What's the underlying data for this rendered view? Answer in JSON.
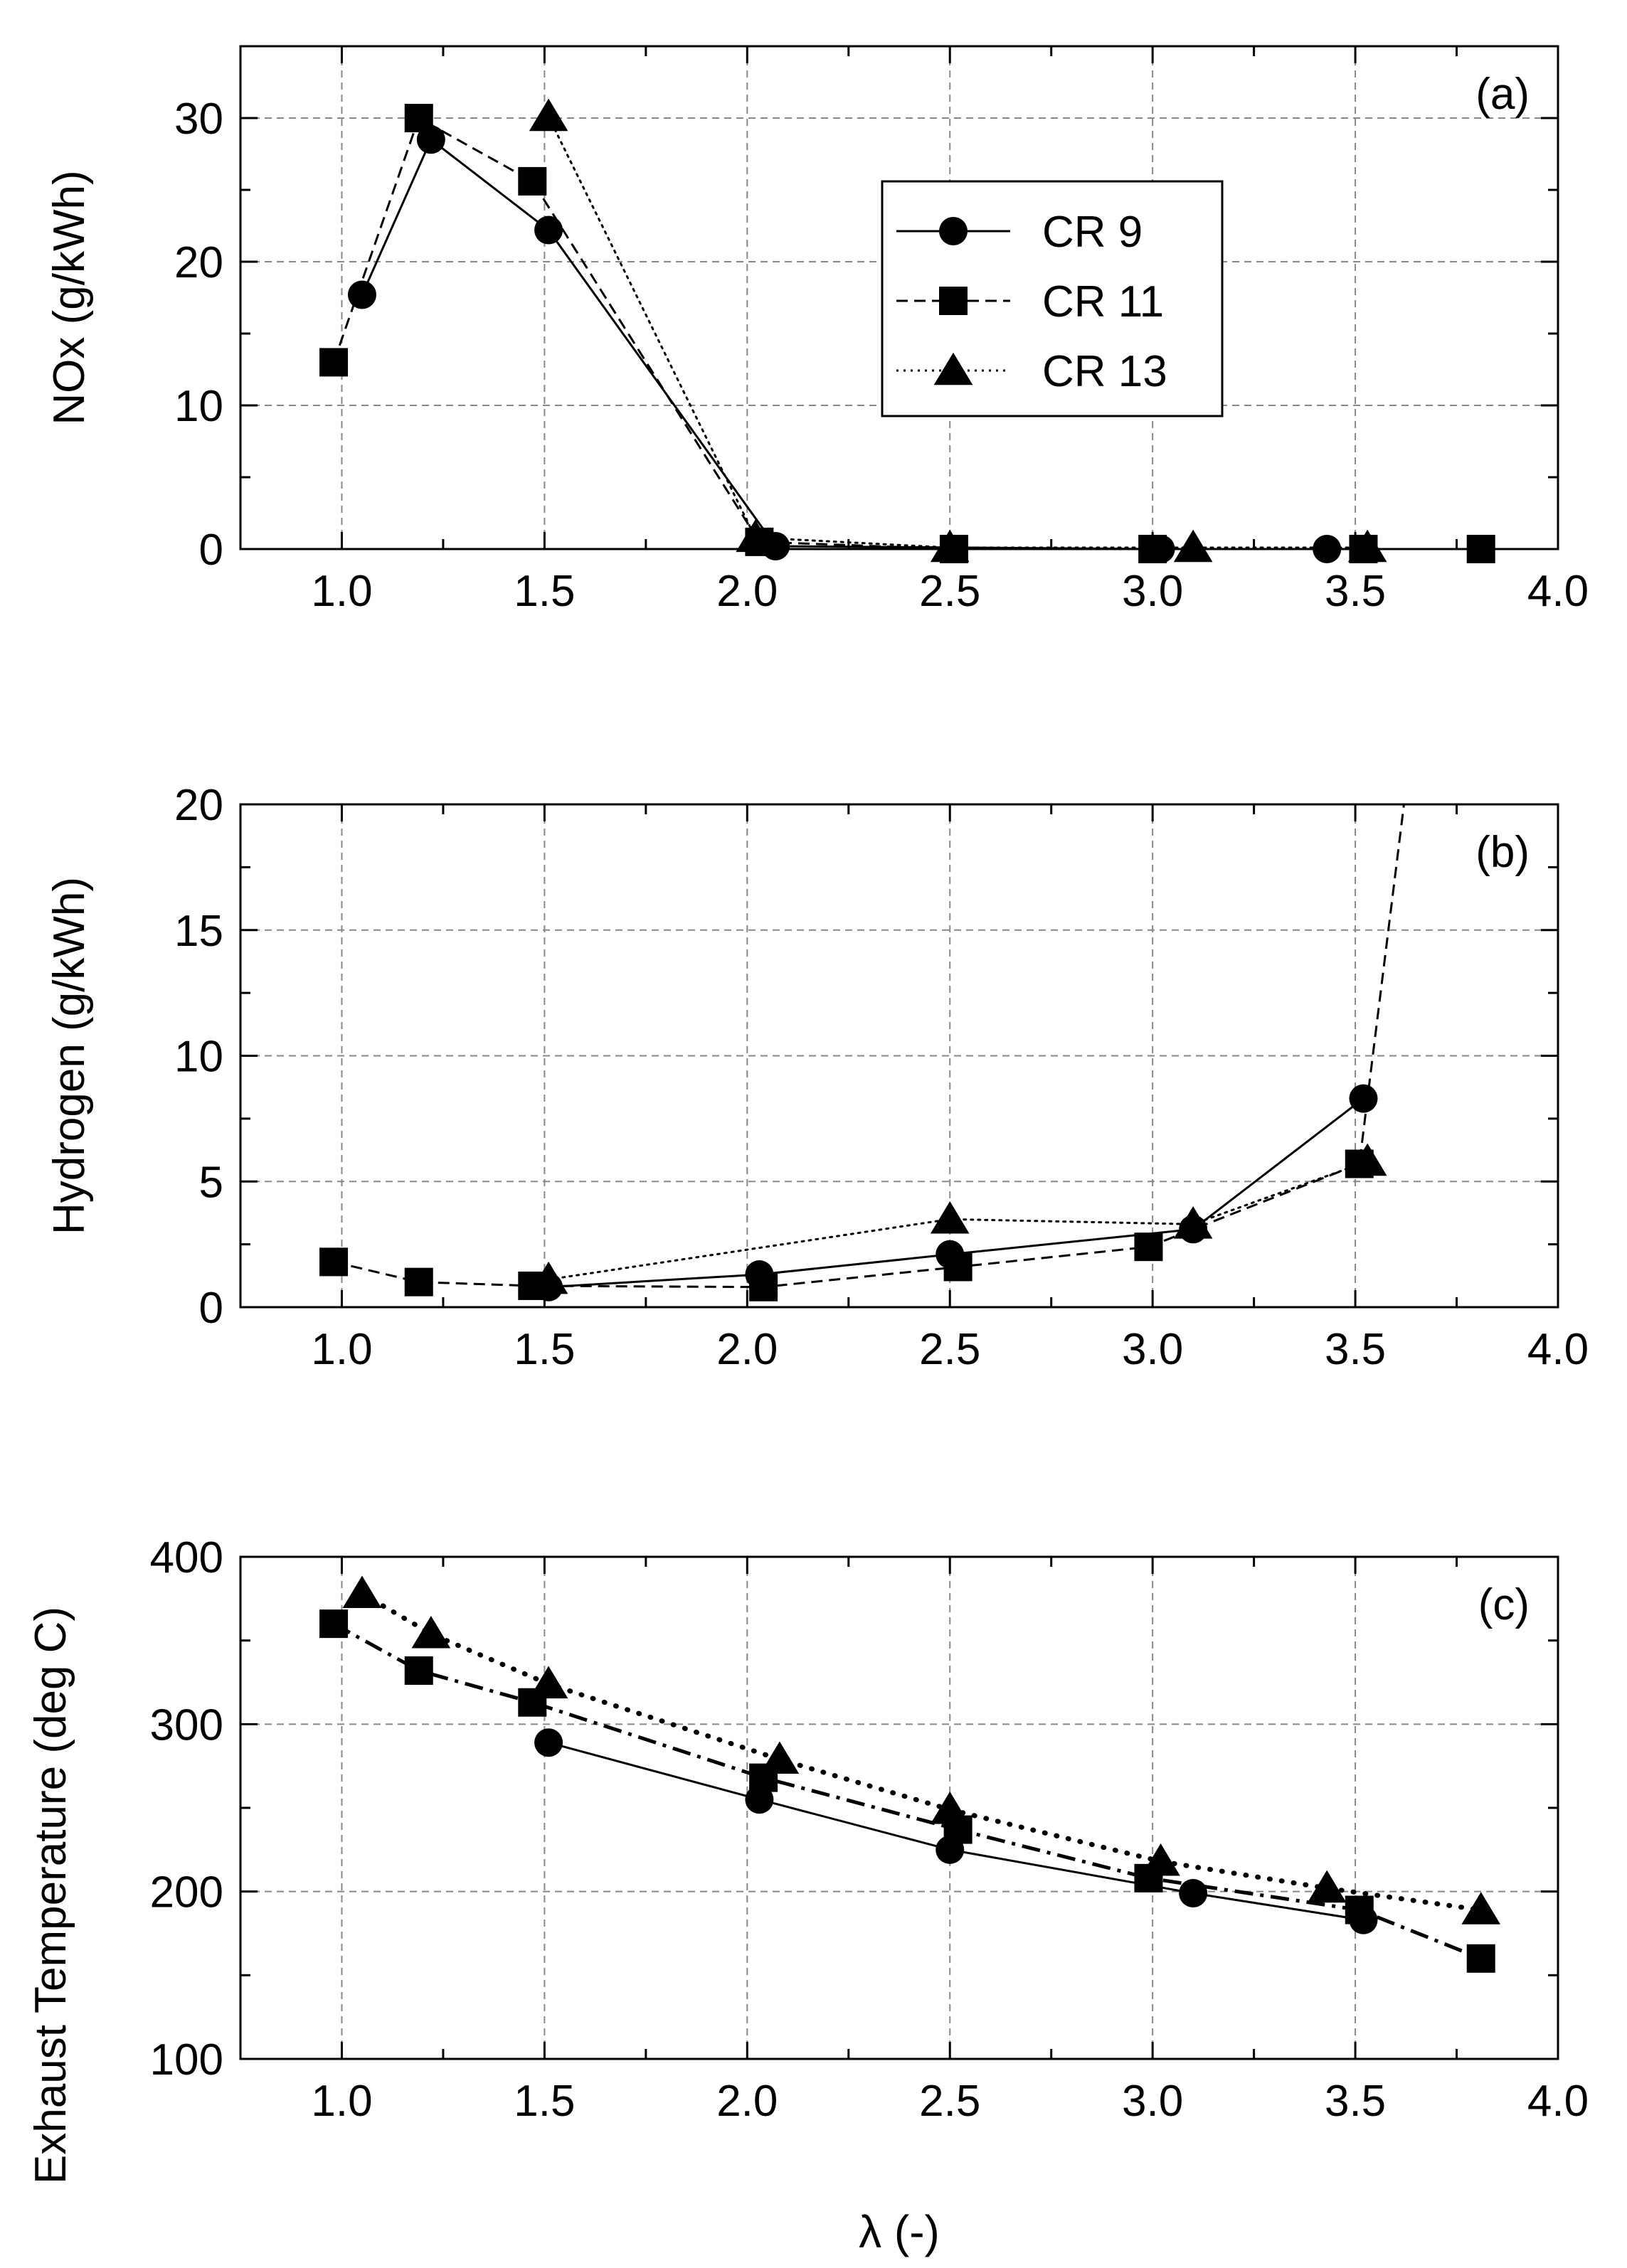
{
  "chart_data": [
    {
      "panel": "(a)",
      "type": "line",
      "ylabel": "NOx (g/kWh)",
      "xlabel": "",
      "xlim": [
        0.75,
        4.0
      ],
      "ylim": [
        0,
        35
      ],
      "xticks": [
        1.0,
        1.5,
        2.0,
        2.5,
        3.0,
        3.5,
        4.0
      ],
      "xtick_labels": [
        "1.0",
        "1.5",
        "2.0",
        "2.5",
        "3.0",
        "3.5",
        "4.0"
      ],
      "yticks": [
        0,
        10,
        20,
        30
      ],
      "ytick_labels": [
        "0",
        "10",
        "20",
        "30"
      ],
      "grid": true,
      "legend_position": "upper-middle",
      "series": [
        {
          "name": "CR 9",
          "marker": "circle",
          "linestyle": "solid",
          "points": [
            [
              1.05,
              17.7
            ],
            [
              1.22,
              28.5
            ],
            [
              1.51,
              22.2
            ],
            [
              2.07,
              0.2
            ],
            [
              3.02,
              0.0
            ],
            [
              3.43,
              0.0
            ],
            [
              3.81,
              0.0
            ]
          ]
        },
        {
          "name": "CR 11",
          "marker": "square",
          "linestyle": "dashed",
          "points": [
            [
              0.98,
              13.0
            ],
            [
              1.19,
              30.0
            ],
            [
              1.47,
              25.6
            ],
            [
              2.03,
              0.5
            ],
            [
              2.51,
              0.0
            ],
            [
              3.0,
              0.0
            ],
            [
              3.52,
              0.0
            ],
            [
              3.81,
              0.0
            ]
          ]
        },
        {
          "name": "CR 13",
          "marker": "triangle",
          "linestyle": "dotted",
          "points": [
            [
              1.51,
              30.1
            ],
            [
              2.02,
              0.8
            ],
            [
              2.5,
              0.1
            ],
            [
              3.1,
              0.1
            ],
            [
              3.53,
              0.1
            ]
          ]
        }
      ]
    },
    {
      "panel": "(b)",
      "type": "line",
      "ylabel": "Hydrogen (g/kWh)",
      "xlabel": "",
      "xlim": [
        0.75,
        4.0
      ],
      "ylim": [
        0,
        20
      ],
      "xticks": [
        1.0,
        1.5,
        2.0,
        2.5,
        3.0,
        3.5,
        4.0
      ],
      "xtick_labels": [
        "1.0",
        "1.5",
        "2.0",
        "2.5",
        "3.0",
        "3.5",
        "4.0"
      ],
      "yticks": [
        0,
        5,
        10,
        15,
        20
      ],
      "ytick_labels": [
        "0",
        "5",
        "10",
        "15",
        "20"
      ],
      "grid": true,
      "series": [
        {
          "name": "CR 9",
          "marker": "circle",
          "linestyle": "solid",
          "points": [
            [
              1.51,
              0.8
            ],
            [
              2.03,
              1.3
            ],
            [
              2.5,
              2.1
            ],
            [
              3.1,
              3.1
            ],
            [
              3.52,
              8.3
            ]
          ]
        },
        {
          "name": "CR 11",
          "marker": "square",
          "linestyle": "dashed",
          "points": [
            [
              0.98,
              1.8
            ],
            [
              1.19,
              1.0
            ],
            [
              1.47,
              0.85
            ],
            [
              2.04,
              0.8
            ],
            [
              2.52,
              1.6
            ],
            [
              2.99,
              2.4
            ],
            [
              3.51,
              5.7
            ]
          ],
          "continues_to": [
            3.62,
            20
          ]
        },
        {
          "name": "CR 13",
          "marker": "triangle",
          "linestyle": "dotted",
          "points": [
            [
              1.51,
              1.1
            ],
            [
              2.5,
              3.5
            ],
            [
              3.1,
              3.3
            ],
            [
              3.53,
              5.8
            ]
          ]
        }
      ]
    },
    {
      "panel": "(c)",
      "type": "line",
      "ylabel": "Exhaust Temperature (deg C)",
      "xlabel": "λ (-)",
      "xlim": [
        0.75,
        4.0
      ],
      "ylim": [
        100,
        400
      ],
      "xticks": [
        1.0,
        1.5,
        2.0,
        2.5,
        3.0,
        3.5,
        4.0
      ],
      "xtick_labels": [
        "1.0",
        "1.5",
        "2.0",
        "2.5",
        "3.0",
        "3.5",
        "4.0"
      ],
      "yticks": [
        100,
        200,
        300,
        400
      ],
      "ytick_labels": [
        "100",
        "200",
        "300",
        "400"
      ],
      "grid": true,
      "series": [
        {
          "name": "CR 9",
          "marker": "circle",
          "linestyle": "solid",
          "points": [
            [
              1.51,
              289
            ],
            [
              2.03,
              255
            ],
            [
              2.5,
              225
            ],
            [
              3.1,
              199
            ],
            [
              3.52,
              183
            ]
          ]
        },
        {
          "name": "CR 11",
          "marker": "square",
          "linestyle": "dashdot",
          "points": [
            [
              0.98,
              360
            ],
            [
              1.19,
              332
            ],
            [
              1.47,
              313
            ],
            [
              2.04,
              268
            ],
            [
              2.52,
              237
            ],
            [
              2.99,
              208
            ],
            [
              3.51,
              189
            ],
            [
              3.81,
              160
            ]
          ]
        },
        {
          "name": "CR 13",
          "marker": "triangle",
          "linestyle": "dotted",
          "points": [
            [
              1.05,
              378
            ],
            [
              1.22,
              354
            ],
            [
              1.51,
              324
            ],
            [
              2.08,
              279
            ],
            [
              2.5,
              249
            ],
            [
              3.02,
              218
            ],
            [
              3.43,
              202
            ],
            [
              3.81,
              189
            ]
          ]
        }
      ]
    }
  ]
}
